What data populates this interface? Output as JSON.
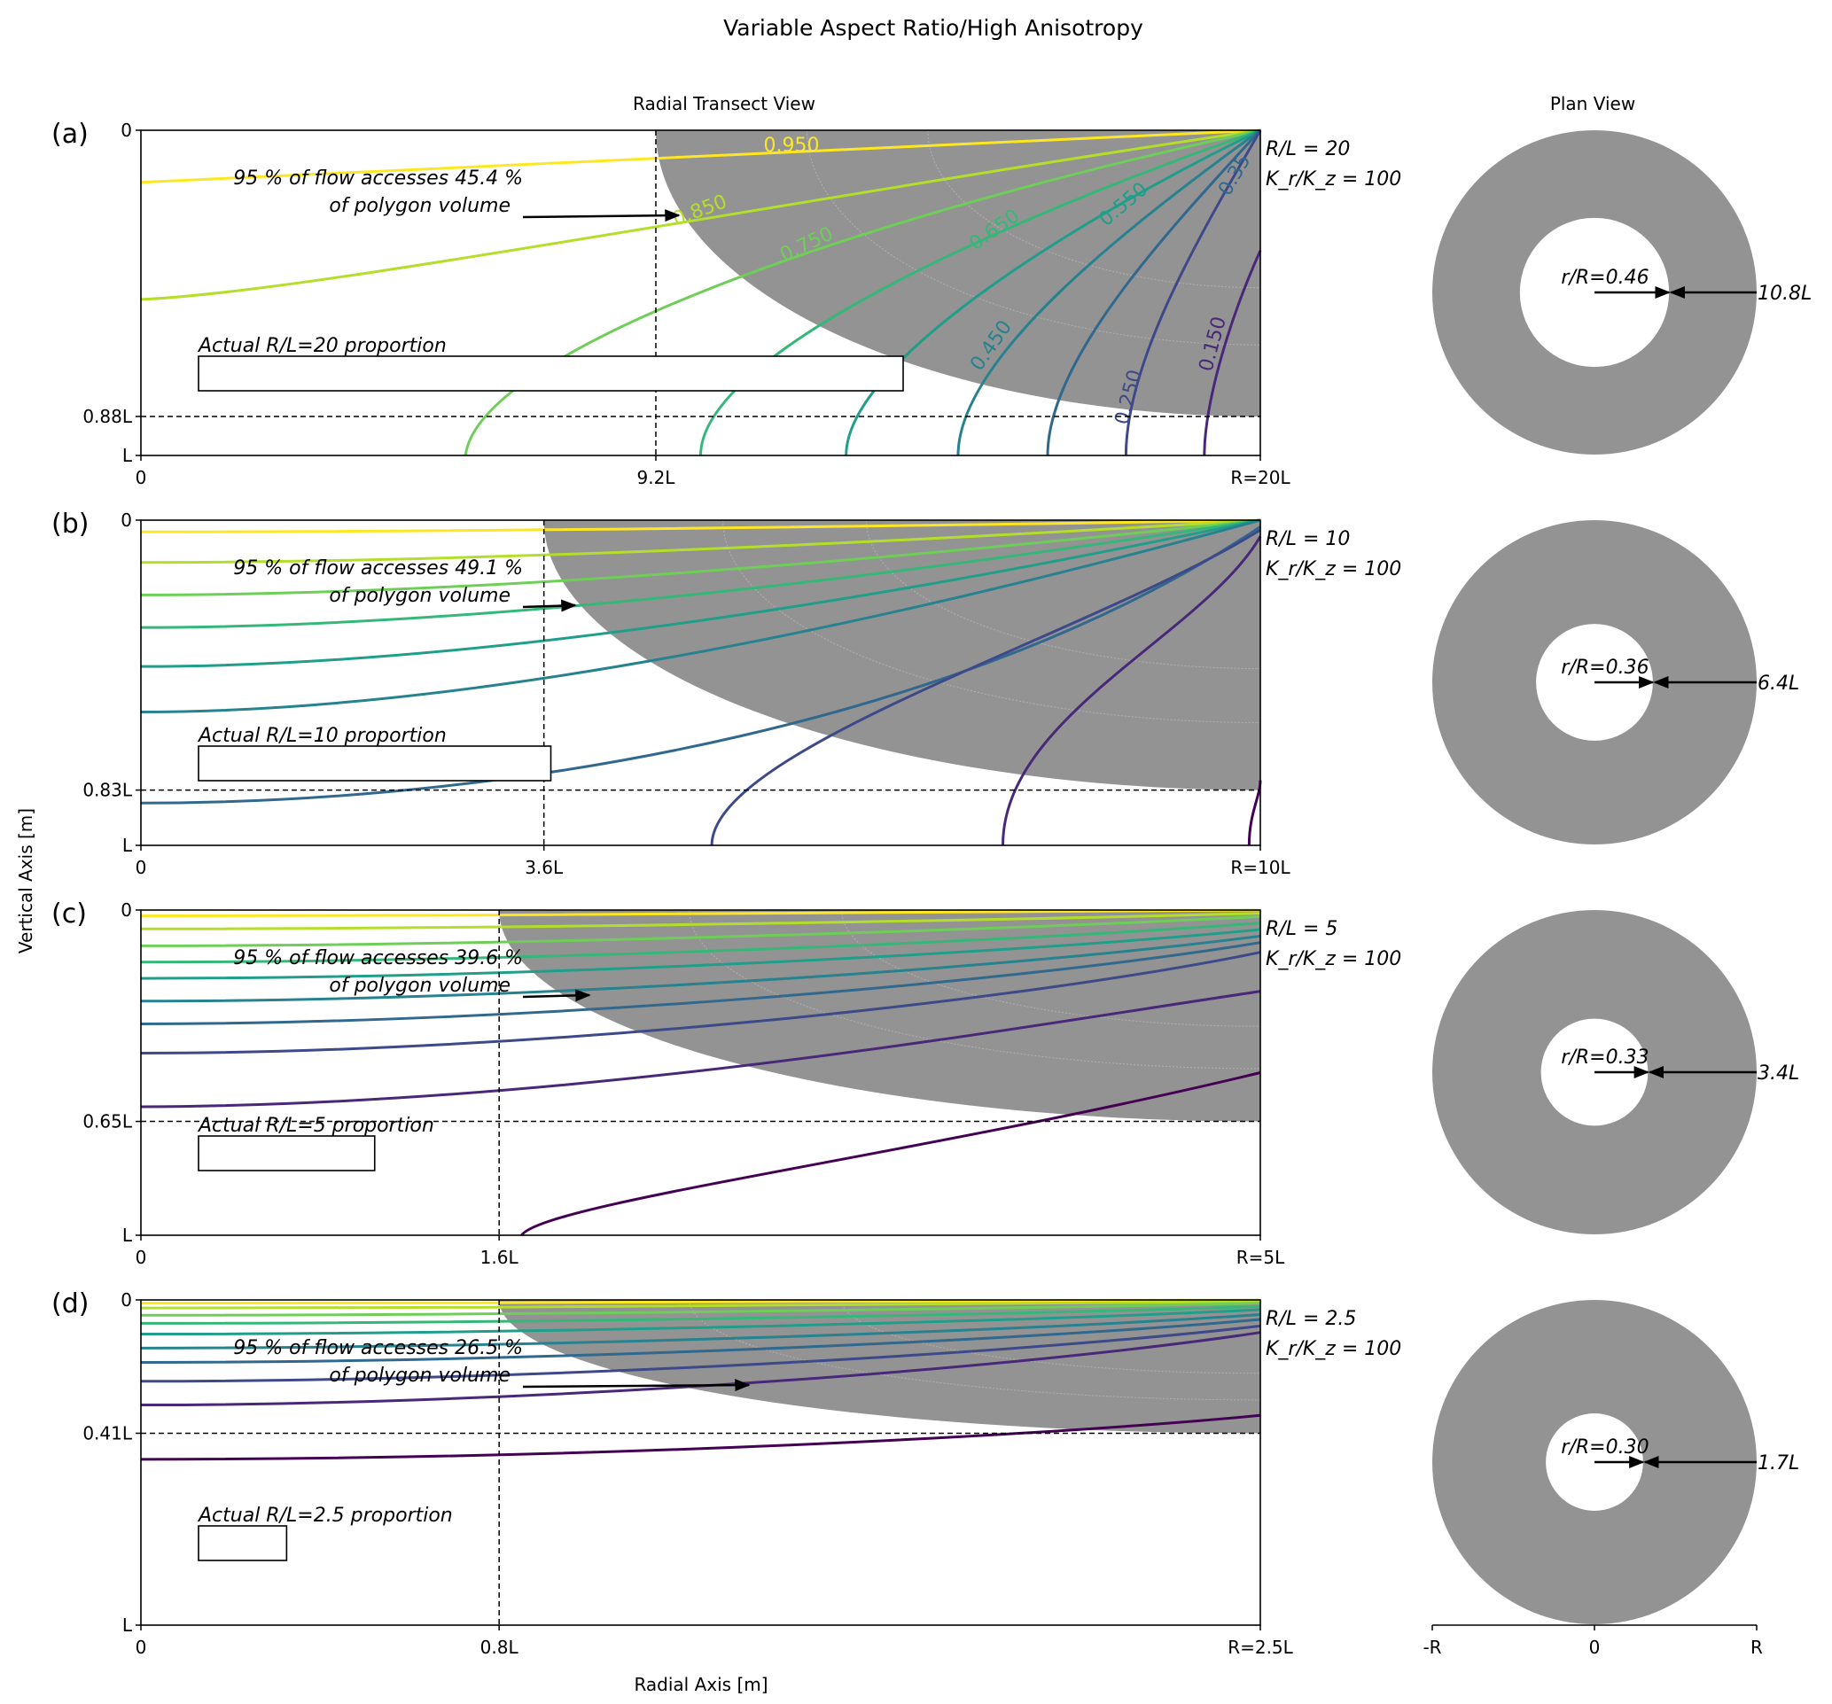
{
  "title": "Variable Aspect Ratio/High Anisotropy",
  "subtitles": {
    "transect": "Radial Transect View",
    "plan": "Plan View"
  },
  "axis": {
    "ylabel": "Vertical Axis [m]",
    "xlabel": "Radial Axis [m]"
  },
  "plan_ticks": [
    "-R",
    "0",
    "R"
  ],
  "colors": {
    "shade": "#939393",
    "levels": {
      "0.95": "#fde725",
      "0.85": "#b5de2b",
      "0.75": "#6ece58",
      "0.65": "#35b779",
      "0.55": "#1f9e89",
      "0.45": "#26828e",
      "0.35": "#31688e",
      "0.25": "#3e4989",
      "0.15": "#482878",
      "0.05": "#440154"
    }
  },
  "chart_data": [
    {
      "type": "contour",
      "panel": "(a)",
      "R_over_L": 20,
      "ratio_label": "R/L = 20",
      "aniso_label": "K_r/K_z = 100",
      "x_ticks": [
        "0",
        "9.2L",
        "R=20L"
      ],
      "y_ticks": [
        "0",
        "0.88L",
        "L"
      ],
      "x_marker": 9.2,
      "depth_marker": 0.88,
      "annotation": [
        "95 % of flow accesses 45.4 %",
        "of polygon volume"
      ],
      "proportion_label": "Actual R/L=20 proportion",
      "contour_levels": [
        0.95,
        0.85,
        0.75,
        0.65,
        0.55,
        0.45,
        0.35,
        0.25,
        0.15
      ],
      "contour_labels": [
        "0.950",
        "0.850",
        "0.750",
        "0.650",
        "0.550",
        "0.450",
        "0.35",
        "0.250",
        "0.150"
      ],
      "plan": {
        "r_over_R": 0.46,
        "r_label": "r/R=0.46",
        "dist_label": "10.8L"
      }
    },
    {
      "type": "contour",
      "panel": "(b)",
      "R_over_L": 10,
      "ratio_label": "R/L = 10",
      "aniso_label": "K_r/K_z = 100",
      "x_ticks": [
        "0",
        "3.6L",
        "R=10L"
      ],
      "y_ticks": [
        "0",
        "0.83L",
        "L"
      ],
      "x_marker": 3.6,
      "depth_marker": 0.83,
      "annotation": [
        "95 % of flow accesses 49.1 %",
        "of polygon volume"
      ],
      "proportion_label": "Actual R/L=10 proportion",
      "contour_levels": [
        0.95,
        0.85,
        0.75,
        0.65,
        0.55,
        0.45,
        0.35,
        0.25,
        0.15,
        0.05
      ],
      "plan": {
        "r_over_R": 0.36,
        "r_label": "r/R=0.36",
        "dist_label": "6.4L"
      }
    },
    {
      "type": "contour",
      "panel": "(c)",
      "R_over_L": 5,
      "ratio_label": "R/L = 5",
      "aniso_label": "K_r/K_z = 100",
      "x_ticks": [
        "0",
        "1.6L",
        "R=5L"
      ],
      "y_ticks": [
        "0",
        "0.65L",
        "L"
      ],
      "x_marker": 1.6,
      "depth_marker": 0.65,
      "annotation": [
        "95 % of flow accesses 39.6 %",
        "of polygon volume"
      ],
      "proportion_label": "Actual R/L=5 proportion",
      "contour_levels": [
        0.95,
        0.85,
        0.75,
        0.65,
        0.55,
        0.45,
        0.35,
        0.25,
        0.15,
        0.05
      ],
      "plan": {
        "r_over_R": 0.33,
        "r_label": "r/R=0.33",
        "dist_label": "3.4L"
      }
    },
    {
      "type": "contour",
      "panel": "(d)",
      "R_over_L": 2.5,
      "ratio_label": "R/L = 2.5",
      "aniso_label": "K_r/K_z = 100",
      "x_ticks": [
        "0",
        "0.8L",
        "R=2.5L"
      ],
      "y_ticks": [
        "0",
        "0.41L",
        "L"
      ],
      "x_marker": 0.8,
      "depth_marker": 0.41,
      "annotation": [
        "95 % of flow accesses 26.5 %",
        "of polygon volume"
      ],
      "proportion_label": "Actual R/L=2.5 proportion",
      "contour_levels": [
        0.95,
        0.85,
        0.75,
        0.65,
        0.55,
        0.45,
        0.35,
        0.25,
        0.15,
        0.05
      ],
      "plan": {
        "r_over_R": 0.3,
        "r_label": "r/R=0.30",
        "dist_label": "1.7L"
      }
    }
  ]
}
